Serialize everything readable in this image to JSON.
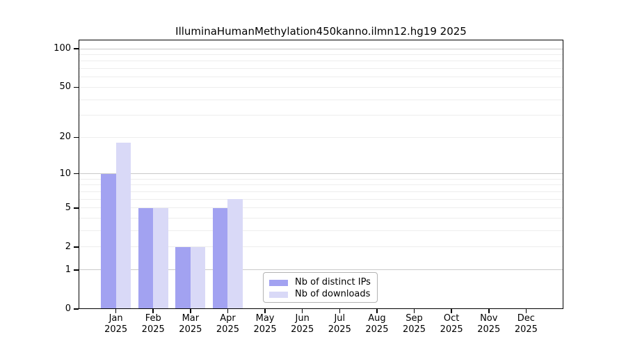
{
  "chart_data": {
    "type": "bar",
    "title": "IlluminaHumanMethylation450kanno.ilmn12.hg19 2025",
    "categories": [
      "Jan",
      "Feb",
      "Mar",
      "Apr",
      "May",
      "Jun",
      "Jul",
      "Aug",
      "Sep",
      "Oct",
      "Nov",
      "Dec"
    ],
    "category_year_line": "2025",
    "series": [
      {
        "name": "Nb of distinct IPs",
        "color": "#a2a2f1",
        "values": [
          10,
          5,
          2,
          5,
          0,
          0,
          0,
          0,
          0,
          0,
          0,
          0
        ]
      },
      {
        "name": "Nb of downloads",
        "color": "#d9d9f7",
        "values": [
          18,
          5,
          2,
          6,
          0,
          0,
          0,
          0,
          0,
          0,
          0,
          0
        ]
      }
    ],
    "y_axis": {
      "scale": "log1p",
      "tick_values": [
        0,
        1,
        2,
        5,
        10,
        20,
        50,
        100
      ],
      "major_gridlines": [
        1,
        10,
        100
      ],
      "minor_gridlines": [
        2,
        3,
        4,
        5,
        6,
        7,
        8,
        9,
        20,
        30,
        40,
        50,
        60,
        70,
        80,
        90
      ],
      "ylim": [
        0,
        117
      ]
    },
    "xlabel": "",
    "ylabel": "",
    "grid": true,
    "legend": {
      "position": "lower center",
      "entries": [
        "Nb of distinct IPs",
        "Nb of downloads"
      ]
    },
    "colors": {
      "background": "#ffffff",
      "axis": "#000000",
      "text": "#000000",
      "major_grid": "#c9c9c9",
      "minor_grid": "#ededed",
      "legend_border": "#b3b3b3"
    }
  }
}
